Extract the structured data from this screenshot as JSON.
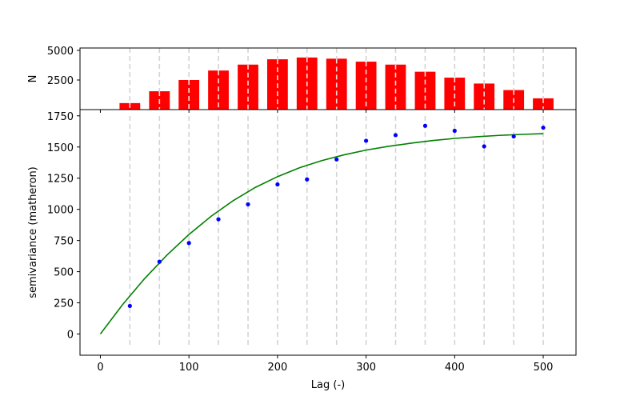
{
  "chart_data": [
    {
      "type": "bar",
      "panel": "top",
      "ylabel": "N",
      "yticks": [
        2500,
        5000
      ],
      "ylim": [
        0,
        5000
      ],
      "xlim": [
        -23,
        537
      ],
      "bar_color": "#ff0000",
      "x": [
        33.3,
        66.7,
        100,
        133.3,
        166.7,
        200,
        233.3,
        266.7,
        300,
        333.3,
        366.7,
        400,
        433.3,
        466.7,
        500
      ],
      "values": [
        550,
        1550,
        2500,
        3300,
        3800,
        4250,
        4400,
        4300,
        4050,
        3800,
        3200,
        2700,
        2200,
        1650,
        950
      ]
    },
    {
      "type": "scatter",
      "panel": "bottom",
      "xlabel": "Lag (-)",
      "ylabel": "semivariance (matheron)",
      "xlim": [
        -23,
        537
      ],
      "ylim": [
        -170,
        1800
      ],
      "xticks": [
        0,
        100,
        200,
        300,
        400,
        500
      ],
      "yticks": [
        0,
        250,
        500,
        750,
        1000,
        1250,
        1500,
        1750
      ],
      "grid": "vertical dashed lines at bin edges",
      "point_color": "#0000ff",
      "model_color": "#008000",
      "series": [
        {
          "type": "scatter",
          "x": [
            33.3,
            66.7,
            100,
            133.3,
            166.7,
            200,
            233.3,
            266.7,
            300,
            333.3,
            366.7,
            400,
            433.3,
            466.7,
            500
          ],
          "y": [
            225,
            580,
            730,
            920,
            1040,
            1200,
            1240,
            1400,
            1550,
            1595,
            1670,
            1630,
            1505,
            1585,
            1655
          ]
        },
        {
          "type": "line",
          "x": [
            0,
            25,
            50,
            75,
            100,
            125,
            150,
            175,
            200,
            225,
            250,
            275,
            300,
            325,
            350,
            375,
            400,
            425,
            450,
            475,
            500
          ],
          "y": [
            0,
            235,
            445,
            632,
            798,
            944,
            1070,
            1176,
            1262,
            1334,
            1391,
            1437,
            1475,
            1505,
            1530,
            1552,
            1569,
            1582,
            1593,
            1601,
            1607
          ]
        }
      ],
      "bin_edges": [
        33.3,
        66.7,
        100,
        133.3,
        166.7,
        200,
        233.3,
        266.7,
        300,
        333.3,
        366.7,
        400,
        433.3,
        466.7,
        500
      ]
    }
  ]
}
